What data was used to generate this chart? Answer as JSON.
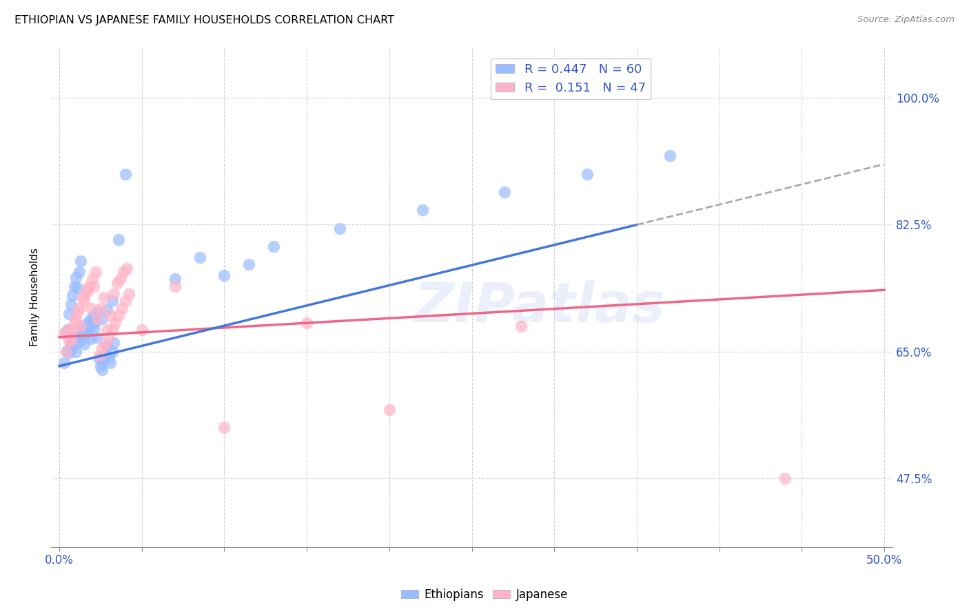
{
  "title": "ETHIOPIAN VS JAPANESE FAMILY HOUSEHOLDS CORRELATION CHART",
  "source": "Source: ZipAtlas.com",
  "ylabel": "Family Households",
  "legend_ethiopians": "Ethiopians",
  "legend_japanese": "Japanese",
  "r_ethiopian": 0.447,
  "n_ethiopian": 60,
  "r_japanese": 0.151,
  "n_japanese": 47,
  "blue_scatter_color": "#99BBFF",
  "pink_scatter_color": "#FFB3C6",
  "blue_line_color": "#4477DD",
  "pink_line_color": "#EE6688",
  "dash_line_color": "#AAAAAA",
  "text_blue": "#3355CC",
  "watermark": "ZIPatlas",
  "watermark_color": "#BBCCEE",
  "watermark_alpha": 0.3,
  "eth_x": [
    0.3,
    0.5,
    0.6,
    0.7,
    0.8,
    0.9,
    1.0,
    1.1,
    1.2,
    1.3,
    1.4,
    1.5,
    1.6,
    1.7,
    1.8,
    1.9,
    2.0,
    2.1,
    2.2,
    2.3,
    2.4,
    2.5,
    2.6,
    2.7,
    2.8,
    2.9,
    3.0,
    3.1,
    3.2,
    3.3,
    0.4,
    0.5,
    0.6,
    0.7,
    0.8,
    0.9,
    1.0,
    1.1,
    1.2,
    1.3,
    1.5,
    1.7,
    1.9,
    2.1,
    2.3,
    2.6,
    2.9,
    3.2,
    3.6,
    4.0,
    7.0,
    8.5,
    10.0,
    11.5,
    13.0,
    17.0,
    22.0,
    27.0,
    32.0,
    37.0
  ],
  "eth_y": [
    63.5,
    65.2,
    64.8,
    66.0,
    65.5,
    66.8,
    65.0,
    67.2,
    66.5,
    68.0,
    67.0,
    68.5,
    67.8,
    69.0,
    68.2,
    69.5,
    68.8,
    70.0,
    69.2,
    70.5,
    64.0,
    63.0,
    62.5,
    63.8,
    64.5,
    65.8,
    64.2,
    63.5,
    65.0,
    66.2,
    67.5,
    68.0,
    70.2,
    71.5,
    72.8,
    74.0,
    75.2,
    73.8,
    76.0,
    77.5,
    66.0,
    67.5,
    66.8,
    68.2,
    67.0,
    69.5,
    70.8,
    72.0,
    80.5,
    89.5,
    75.0,
    78.0,
    75.5,
    77.0,
    79.5,
    82.0,
    84.5,
    87.0,
    89.5,
    92.0
  ],
  "jap_x": [
    0.3,
    0.5,
    0.7,
    0.9,
    1.1,
    1.3,
    1.5,
    1.7,
    1.9,
    2.1,
    2.3,
    2.5,
    2.7,
    2.9,
    3.1,
    3.3,
    3.5,
    3.7,
    3.9,
    4.1,
    0.4,
    0.6,
    0.8,
    1.0,
    1.2,
    1.4,
    1.6,
    1.8,
    2.0,
    2.2,
    2.4,
    2.6,
    2.8,
    3.0,
    3.2,
    3.4,
    3.6,
    3.8,
    4.0,
    4.2,
    5.0,
    7.0,
    10.0,
    15.0,
    20.0,
    28.0,
    44.0
  ],
  "jap_y": [
    67.5,
    68.0,
    66.5,
    69.0,
    70.5,
    68.5,
    72.0,
    73.5,
    71.0,
    74.0,
    69.5,
    71.0,
    72.5,
    68.0,
    70.0,
    73.0,
    74.5,
    75.0,
    76.0,
    76.5,
    65.0,
    66.5,
    68.0,
    69.5,
    71.0,
    72.5,
    73.0,
    74.0,
    75.0,
    76.0,
    64.5,
    65.5,
    66.0,
    67.0,
    68.0,
    69.0,
    70.0,
    71.0,
    72.0,
    73.0,
    68.0,
    74.0,
    54.5,
    69.0,
    57.0,
    68.5,
    47.5
  ],
  "eth_line_x0": 0.0,
  "eth_line_x1": 35.0,
  "eth_line_y0": 63.0,
  "eth_line_y1": 82.5,
  "eth_dash_x1": 50.0,
  "jap_line_x0": 0.0,
  "jap_line_x1": 50.0,
  "jap_line_y0": 67.0,
  "jap_line_y1": 73.5,
  "xmin": 0.0,
  "xmax": 50.0,
  "ymin": 38.0,
  "ymax": 107.0,
  "yticks": [
    47.5,
    65.0,
    82.5,
    100.0
  ]
}
